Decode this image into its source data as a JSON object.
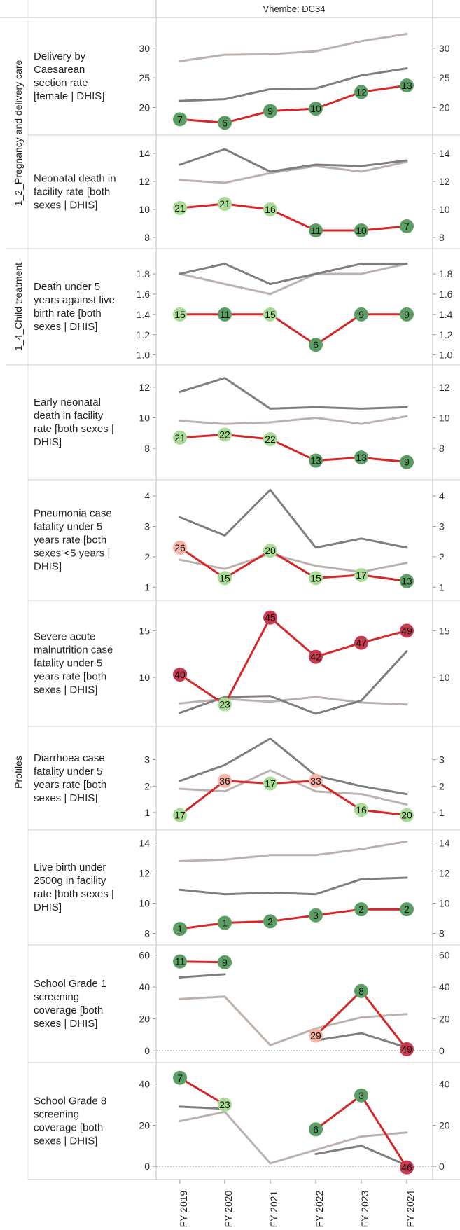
{
  "header": {
    "title": "Vhembe: DC34"
  },
  "groups": [
    {
      "label": "1_2_Pregnancy and delivery care",
      "rows": [
        0,
        1
      ]
    },
    {
      "label": "1_4_Child treatment",
      "rows": [
        2
      ]
    },
    {
      "label": "Profiles",
      "rows": [
        3,
        9
      ]
    }
  ],
  "colors": {
    "district": "#d62728",
    "line_dark": "#7f7f7f",
    "line_light": "#bcb2ad",
    "rank_good_dark": "#5b9e64",
    "rank_good_light": "#a8dc94",
    "rank_bad_light": "#f7b4a6",
    "rank_bad_dark": "#c8384f"
  },
  "chart_data": {
    "type": "line",
    "x": [
      "FY 2019",
      "FY 2020",
      "FY 2021",
      "FY 2022",
      "FY 2023",
      "FY 2024"
    ],
    "panels": [
      {
        "label": [
          "Delivery by",
          "Caesarean",
          "section rate",
          "[female | DHIS]"
        ],
        "yticks": [
          20,
          25,
          30
        ],
        "ylim": [
          16.5,
          34
        ],
        "series": [
          {
            "values": [
              27.8,
              28.9,
              29.0,
              29.5,
              31.2,
              32.4
            ]
          },
          {
            "values": [
              21.1,
              21.4,
              23.1,
              23.2,
              25.4,
              26.6
            ]
          },
          {
            "values": [
              18.0,
              17.4,
              19.4,
              19.8,
              22.6,
              23.7
            ],
            "ranks": [
              "7",
              "6",
              "9",
              "10",
              "12",
              "13"
            ]
          }
        ]
      },
      {
        "label": [
          "Neonatal death in",
          "facility rate [both",
          "sexes | DHIS]"
        ],
        "yticks": [
          8,
          10,
          12,
          14
        ],
        "ylim": [
          7.7,
          14.8
        ],
        "series": [
          {
            "values": [
              12.1,
              11.9,
              12.6,
              13.1,
              12.7,
              13.4
            ]
          },
          {
            "values": [
              13.2,
              14.3,
              12.7,
              13.2,
              13.1,
              13.5
            ]
          },
          {
            "values": [
              10.1,
              10.4,
              10.0,
              8.5,
              8.5,
              8.8
            ],
            "ranks": [
              "21",
              "21",
              "16",
              "11",
              "10",
              "7"
            ]
          }
        ]
      },
      {
        "label": [
          "Death under 5",
          "years against live",
          "birth rate [both",
          "sexes | DHIS]"
        ],
        "yticks": [
          1.0,
          1.2,
          1.4,
          1.6,
          1.8
        ],
        "ylim": [
          0.97,
          1.98
        ],
        "series": [
          {
            "values": [
              1.8,
              1.7,
              1.6,
              1.8,
              1.8,
              1.9
            ]
          },
          {
            "values": [
              1.8,
              1.9,
              1.7,
              1.8,
              1.9,
              1.9
            ]
          },
          {
            "values": [
              1.4,
              1.4,
              1.4,
              1.1,
              1.4,
              1.4
            ],
            "ranks": [
              "15",
              "11",
              "15",
              "6",
              "9",
              "9"
            ]
          }
        ]
      },
      {
        "label": [
          "Early neonatal",
          "death in facility",
          "rate [both sexes |",
          "DHIS]"
        ],
        "yticks": [
          8,
          10,
          12
        ],
        "ylim": [
          6.4,
          13
        ],
        "series": [
          {
            "values": [
              9.8,
              9.6,
              9.7,
              10.0,
              9.6,
              10.1
            ]
          },
          {
            "values": [
              11.7,
              12.6,
              10.6,
              10.7,
              10.6,
              10.7
            ]
          },
          {
            "values": [
              8.7,
              8.9,
              8.6,
              7.2,
              7.4,
              7.1
            ],
            "ranks": [
              "21",
              "22",
              "22",
              "13",
              "13",
              "9"
            ]
          }
        ]
      },
      {
        "label": [
          "Pneumonia case",
          "fatality under 5",
          "years rate [both",
          "sexes <5 years |",
          "DHIS]"
        ],
        "yticks": [
          1,
          2,
          3,
          4
        ],
        "ylim": [
          0.8,
          4.3
        ],
        "series": [
          {
            "values": [
              1.9,
              1.6,
              2.1,
              1.7,
              1.5,
              1.8
            ]
          },
          {
            "values": [
              3.3,
              2.7,
              4.2,
              2.3,
              2.6,
              2.3
            ]
          },
          {
            "values": [
              2.3,
              1.3,
              2.2,
              1.3,
              1.4,
              1.2
            ],
            "ranks": [
              "26",
              "15",
              "20",
              "15",
              "17",
              "13"
            ]
          }
        ]
      },
      {
        "label": [
          "Severe acute",
          "malnutrition case",
          "fatality under 5",
          "years rate [both",
          "sexes | DHIS]"
        ],
        "yticks": [
          10,
          15
        ],
        "ylim": [
          5.5,
          17.5
        ],
        "series": [
          {
            "values": [
              7.2,
              7.7,
              7.4,
              7.9,
              7.3,
              7.1
            ]
          },
          {
            "values": [
              6.2,
              7.9,
              8.0,
              6.1,
              7.5,
              12.8
            ]
          },
          {
            "values": [
              10.3,
              7.1,
              16.4,
              12.2,
              13.7,
              15.0
            ],
            "ranks": [
              "40",
              "23",
              "45",
              "42",
              "47",
              "49"
            ]
          }
        ]
      },
      {
        "label": [
          "Diarrhoea case",
          "fatality under 5",
          "years rate [both",
          "sexes | DHIS]"
        ],
        "yticks": [
          1,
          2,
          3
        ],
        "ylim": [
          0.6,
          4.0
        ],
        "series": [
          {
            "values": [
              1.9,
              1.8,
              2.6,
              1.8,
              1.7,
              1.3
            ]
          },
          {
            "values": [
              2.2,
              2.8,
              3.8,
              2.4,
              2.0,
              1.7
            ]
          },
          {
            "values": [
              0.9,
              2.2,
              2.1,
              2.2,
              1.1,
              0.9
            ],
            "ranks": [
              "17",
              "36",
              "17",
              "33",
              "16",
              "20"
            ]
          }
        ]
      },
      {
        "label": [
          "Live birth under",
          "2500g in facility",
          "rate [both sexes |",
          "DHIS]"
        ],
        "yticks": [
          8,
          10,
          12,
          14
        ],
        "ylim": [
          7.7,
          14.4
        ],
        "series": [
          {
            "values": [
              12.8,
              12.9,
              13.2,
              13.2,
              13.6,
              14.1
            ]
          },
          {
            "values": [
              10.9,
              10.6,
              10.7,
              10.6,
              11.6,
              11.7
            ]
          },
          {
            "values": [
              8.3,
              8.7,
              8.8,
              9.2,
              9.6,
              9.6
            ],
            "ranks": [
              "1",
              "1",
              "2",
              "3",
              "2",
              "2"
            ]
          }
        ]
      },
      {
        "label": [
          "School Grade 1",
          "screening",
          "coverage [both",
          "sexes | DHIS]"
        ],
        "yticks": [
          0,
          20,
          40,
          60
        ],
        "ylim": [
          -3,
          62
        ],
        "zero": true,
        "series": [
          {
            "values": [
              32.5,
              34.0,
              3.5,
              14.0,
              21.0,
              23.0
            ]
          },
          {
            "values": [
              46.0,
              48.0,
              null,
              6.5,
              11.0,
              2.0
            ]
          },
          {
            "values": [
              56.0,
              55.5,
              null,
              9.5,
              37.5,
              1.0
            ],
            "ranks": [
              "11",
              "9",
              "",
              "29",
              "8",
              "49"
            ]
          }
        ]
      },
      {
        "label": [
          "School Grade 8",
          "screening",
          "coverage [both",
          "sexes | DHIS]"
        ],
        "yticks": [
          0,
          20,
          40
        ],
        "ylim": [
          -3,
          47
        ],
        "zero": true,
        "series": [
          {
            "values": [
              22.0,
              26.5,
              1.5,
              8.0,
              14.5,
              16.5
            ]
          },
          {
            "values": [
              29.0,
              28.0,
              null,
              6.0,
              10.0,
              0.5
            ]
          },
          {
            "values": [
              43.0,
              30.0,
              null,
              18.0,
              34.5,
              -0.5
            ],
            "ranks": [
              "7",
              "23",
              "",
              "6",
              "3",
              "46"
            ]
          }
        ]
      }
    ]
  }
}
